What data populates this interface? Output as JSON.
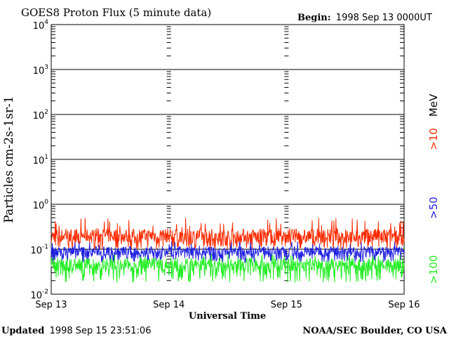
{
  "header": {
    "title": "GOES8 Proton Flux (5 minute data)",
    "begin_label": "Begin:",
    "begin_value": "1998 Sep 13 0000UT"
  },
  "footer": {
    "updated_label": "Updated",
    "updated_value": "1998 Sep 15 23:51:06",
    "source": "NOAA/SEC Boulder, CO USA"
  },
  "chart_data": {
    "type": "line",
    "title": "GOES8 Proton Flux (5 minute data)",
    "xlabel": "Universal Time",
    "ylabel": "Particles cm-2s-1sr-1",
    "y_scale": "log",
    "ylim": [
      0.01,
      10000
    ],
    "xlim": [
      "1998-09-13",
      "1998-09-16"
    ],
    "x_ticks": [
      "Sep 13",
      "Sep 14",
      "Sep 15",
      "Sep 16"
    ],
    "y_ticks": [
      {
        "base": "10",
        "exp": "-2"
      },
      {
        "base": "10",
        "exp": "-1"
      },
      {
        "base": "10",
        "exp": "0"
      },
      {
        "base": "10",
        "exp": "1"
      },
      {
        "base": "10",
        "exp": "2"
      },
      {
        "base": "10",
        "exp": "3"
      },
      {
        "base": "10",
        "exp": "4"
      }
    ],
    "grid": true,
    "legend_unit": "MeV",
    "series": [
      {
        "name": ">10",
        "color": "#ff2a00",
        "typical": 0.2,
        "range": [
          0.1,
          0.5
        ]
      },
      {
        "name": ">50",
        "color": "#1f1fe0",
        "typical": 0.09,
        "range": [
          0.05,
          0.15
        ]
      },
      {
        "name": ">100",
        "color": "#22ee22",
        "typical": 0.045,
        "range": [
          0.018,
          0.08
        ]
      }
    ]
  }
}
